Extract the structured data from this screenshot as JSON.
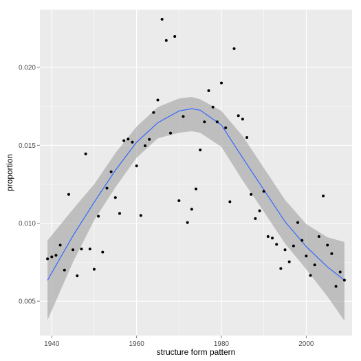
{
  "chart_data": {
    "type": "scatter",
    "xlabel": "structure form pattern",
    "ylabel": "proportion",
    "xlim": [
      1937.2,
      2010.8
    ],
    "ylim": [
      0.0028,
      0.0237
    ],
    "xticks": [
      1940,
      1960,
      1980,
      2000
    ],
    "xtick_labels": [
      "1940",
      "1960",
      "1980",
      "2000"
    ],
    "yticks": [
      0.005,
      0.01,
      0.015,
      0.02
    ],
    "ytick_labels": [
      "0.005",
      "0.010",
      "0.015",
      "0.020"
    ],
    "grid": true,
    "legend": "none",
    "points": [
      {
        "x": 1939,
        "y": 0.00772
      },
      {
        "x": 1940,
        "y": 0.00785
      },
      {
        "x": 1941,
        "y": 0.00795
      },
      {
        "x": 1942,
        "y": 0.0086
      },
      {
        "x": 1943,
        "y": 0.007
      },
      {
        "x": 1944,
        "y": 0.01185
      },
      {
        "x": 1945,
        "y": 0.0083
      },
      {
        "x": 1946,
        "y": 0.00663
      },
      {
        "x": 1947,
        "y": 0.00835
      },
      {
        "x": 1948,
        "y": 0.01445
      },
      {
        "x": 1949,
        "y": 0.00835
      },
      {
        "x": 1950,
        "y": 0.00705
      },
      {
        "x": 1951,
        "y": 0.01045
      },
      {
        "x": 1952,
        "y": 0.00815
      },
      {
        "x": 1953,
        "y": 0.01225
      },
      {
        "x": 1954,
        "y": 0.0133
      },
      {
        "x": 1955,
        "y": 0.01165
      },
      {
        "x": 1956,
        "y": 0.01063
      },
      {
        "x": 1957,
        "y": 0.0153
      },
      {
        "x": 1958,
        "y": 0.0154
      },
      {
        "x": 1959,
        "y": 0.0152
      },
      {
        "x": 1960,
        "y": 0.01368
      },
      {
        "x": 1961,
        "y": 0.0105
      },
      {
        "x": 1962,
        "y": 0.01497
      },
      {
        "x": 1963,
        "y": 0.01538
      },
      {
        "x": 1964,
        "y": 0.0171
      },
      {
        "x": 1965,
        "y": 0.0179
      },
      {
        "x": 1966,
        "y": 0.02308
      },
      {
        "x": 1967,
        "y": 0.02172
      },
      {
        "x": 1968,
        "y": 0.01578
      },
      {
        "x": 1969,
        "y": 0.02198
      },
      {
        "x": 1970,
        "y": 0.01145
      },
      {
        "x": 1971,
        "y": 0.01685
      },
      {
        "x": 1972,
        "y": 0.01005
      },
      {
        "x": 1973,
        "y": 0.0109
      },
      {
        "x": 1974,
        "y": 0.0122
      },
      {
        "x": 1975,
        "y": 0.0147
      },
      {
        "x": 1976,
        "y": 0.0165
      },
      {
        "x": 1977,
        "y": 0.0185
      },
      {
        "x": 1978,
        "y": 0.01745
      },
      {
        "x": 1979,
        "y": 0.0165
      },
      {
        "x": 1980,
        "y": 0.019
      },
      {
        "x": 1981,
        "y": 0.01612
      },
      {
        "x": 1982,
        "y": 0.01138
      },
      {
        "x": 1983,
        "y": 0.0212
      },
      {
        "x": 1984,
        "y": 0.0169
      },
      {
        "x": 1985,
        "y": 0.01668
      },
      {
        "x": 1986,
        "y": 0.0155
      },
      {
        "x": 1987,
        "y": 0.01185
      },
      {
        "x": 1988,
        "y": 0.0103
      },
      {
        "x": 1989,
        "y": 0.0108
      },
      {
        "x": 1990,
        "y": 0.01205
      },
      {
        "x": 1991,
        "y": 0.00915
      },
      {
        "x": 1992,
        "y": 0.00905
      },
      {
        "x": 1993,
        "y": 0.00865
      },
      {
        "x": 1994,
        "y": 0.0071
      },
      {
        "x": 1995,
        "y": 0.0083
      },
      {
        "x": 1996,
        "y": 0.00753
      },
      {
        "x": 1997,
        "y": 0.00855
      },
      {
        "x": 1998,
        "y": 0.01005
      },
      {
        "x": 1999,
        "y": 0.0089
      },
      {
        "x": 2000,
        "y": 0.0079
      },
      {
        "x": 2001,
        "y": 0.00665
      },
      {
        "x": 2002,
        "y": 0.00733
      },
      {
        "x": 2003,
        "y": 0.00915
      },
      {
        "x": 2004,
        "y": 0.01175
      },
      {
        "x": 2005,
        "y": 0.0086
      },
      {
        "x": 2006,
        "y": 0.00805
      },
      {
        "x": 2007,
        "y": 0.00595
      },
      {
        "x": 2008,
        "y": 0.00688
      },
      {
        "x": 2009,
        "y": 0.00635
      }
    ],
    "smooth": {
      "method": "loess",
      "x": [
        1939,
        1945,
        1950,
        1955,
        1960,
        1965,
        1970,
        1973,
        1975,
        1980,
        1985,
        1990,
        1995,
        2000,
        2005,
        2009
      ],
      "y": [
        0.00635,
        0.0092,
        0.01135,
        0.0134,
        0.0152,
        0.01645,
        0.0172,
        0.01735,
        0.01725,
        0.0163,
        0.0142,
        0.01215,
        0.0101,
        0.0085,
        0.0072,
        0.00635
      ],
      "lower": [
        0.0038,
        0.0075,
        0.0102,
        0.0123,
        0.0142,
        0.01545,
        0.0158,
        0.0159,
        0.0158,
        0.0149,
        0.01275,
        0.01075,
        0.0087,
        0.00705,
        0.0053,
        0.00375
      ],
      "upper": [
        0.0089,
        0.0109,
        0.0125,
        0.0145,
        0.0162,
        0.01745,
        0.018,
        0.0181,
        0.01795,
        0.0172,
        0.0156,
        0.01355,
        0.0115,
        0.00995,
        0.0091,
        0.0088
      ],
      "line_color": "#3366ff",
      "band_color": "#999999"
    },
    "point_color": "#000000",
    "panel_background": "#ebebeb",
    "grid_color": "#ffffff"
  }
}
